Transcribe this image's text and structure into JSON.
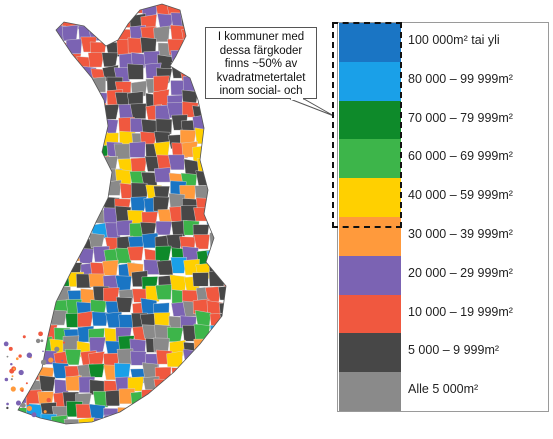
{
  "callout": {
    "lines": [
      "I kommuner med",
      "dessa färgkoder",
      "finns ~50% av",
      "kvadratmetertalet",
      "inom social- och"
    ]
  },
  "legend": {
    "items": [
      {
        "color": "#1a75c4",
        "label": "100 000m² tai yli"
      },
      {
        "color": "#1aa0e8",
        "label": "80 000 – 99 999m²"
      },
      {
        "color": "#0e8a2a",
        "label": "70 000 – 79 999m²"
      },
      {
        "color": "#3db54a",
        "label": "60 000 – 69 999m²"
      },
      {
        "color": "#ffd000",
        "label": "40 000 – 59 999m²"
      },
      {
        "color": "#ff9a3c",
        "label": "30 000 – 39 999m²"
      },
      {
        "color": "#7b63b3",
        "label": "20 000 – 29 999m²"
      },
      {
        "color": "#f0583f",
        "label": "10 000 – 19 999m²"
      },
      {
        "color": "#474747",
        "label": "5 000 – 9 999m²"
      },
      {
        "color": "#8a8a8a",
        "label": "Alle 5 000m²"
      }
    ]
  }
}
